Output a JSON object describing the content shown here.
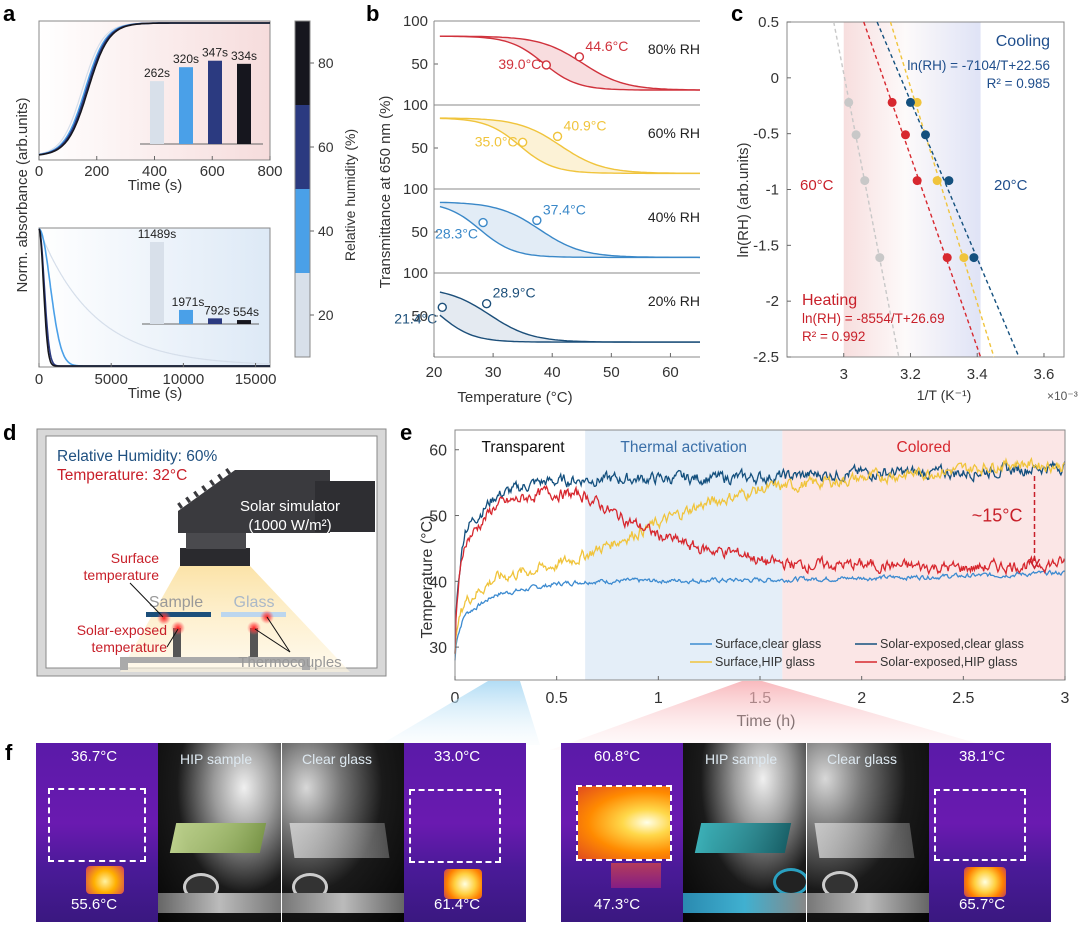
{
  "panel_labels": {
    "a": "a",
    "b": "b",
    "c": "c",
    "d": "d",
    "e": "e",
    "f": "f"
  },
  "chart_data": [
    {
      "id": "a_top",
      "type": "line",
      "title": "",
      "xlabel": "Time (s)",
      "ylabel": "Norm. absorbance (arb.units)",
      "xlim": [
        0,
        800
      ],
      "xticks": [
        "0",
        "200",
        "400",
        "600",
        "800"
      ],
      "series": [
        {
          "name": "20% RH",
          "color": "#d5deea",
          "t_half": 150
        },
        {
          "name": "40% RH",
          "color": "#4aa0e8",
          "t_half": 160
        },
        {
          "name": "60% RH",
          "color": "#2b3a80",
          "t_half": 165
        },
        {
          "name": "80% RH",
          "color": "#16161e",
          "t_half": 170
        }
      ],
      "inset": {
        "type": "bar",
        "categories": [
          "20% RH",
          "40% RH",
          "60% RH",
          "80% RH"
        ],
        "values": [
          262,
          320,
          347,
          334
        ],
        "labels": [
          "262s",
          "320s",
          "347s",
          "334s"
        ],
        "colors": [
          "#d8e0ea",
          "#4aa0e8",
          "#2b3a80",
          "#16161e"
        ]
      }
    },
    {
      "id": "a_bottom",
      "type": "line",
      "xlabel": "Time (s)",
      "xlim": [
        0,
        16000
      ],
      "xticks": [
        "0",
        "5000",
        "10000",
        "15000"
      ],
      "series": [
        {
          "name": "20% RH",
          "color": "#d5deea",
          "tau": 3800
        },
        {
          "name": "40% RH",
          "color": "#4aa0e8",
          "tau": 900
        },
        {
          "name": "60% RH",
          "color": "#2b3a80",
          "tau": 420
        },
        {
          "name": "80% RH",
          "color": "#16161e",
          "tau": 360
        }
      ],
      "inset": {
        "type": "bar",
        "categories": [
          "20% RH",
          "40% RH",
          "60% RH",
          "80% RH"
        ],
        "values": [
          11489,
          1971,
          792,
          554
        ],
        "labels": [
          "11489s",
          "1971s",
          "792s",
          "554s"
        ],
        "colors": [
          "#d8e0ea",
          "#4aa0e8",
          "#2b3a80",
          "#16161e"
        ]
      }
    },
    {
      "id": "colorbar",
      "type": "heatmap",
      "label": "Relative humidity (%)",
      "range": [
        10,
        90
      ],
      "ticks": [
        "20",
        "40",
        "60",
        "80"
      ],
      "bands": [
        {
          "from": 10,
          "to": 30,
          "color": "#d8e0ea"
        },
        {
          "from": 30,
          "to": 50,
          "color": "#4aa0e8"
        },
        {
          "from": 50,
          "to": 70,
          "color": "#2b3a80"
        },
        {
          "from": 70,
          "to": 90,
          "color": "#16161e"
        }
      ]
    },
    {
      "id": "b",
      "type": "line",
      "xlabel": "Temperature (°C)",
      "ylabel": "Transmittance at 650 nm (%)",
      "xlim": [
        20,
        65
      ],
      "xticks": [
        "20",
        "30",
        "40",
        "50",
        "60"
      ],
      "yticks": [
        "100",
        "50"
      ],
      "subplots": [
        {
          "rh": "80% RH",
          "color": "#d0323c",
          "fill": "#f7d7d9",
          "top": 85,
          "bottom": 12,
          "heat": 44.6,
          "cool": 39.0,
          "heat_label": "44.6°C",
          "cool_label": "39.0°C",
          "heat_y": 57,
          "cool_y": 46
        },
        {
          "rh": "60% RH",
          "color": "#f0c43c",
          "fill": "#fbf0cf",
          "top": 88,
          "bottom": 13,
          "heat": 40.9,
          "cool": 35.0,
          "heat_label": "40.9°C",
          "cool_label": "35.0°C",
          "heat_y": 63,
          "cool_y": 55
        },
        {
          "rh": "40% RH",
          "color": "#3a88c8",
          "fill": "#dde9f5",
          "top": 88,
          "bottom": 13,
          "heat": 37.4,
          "cool": 28.3,
          "heat_label": "37.4°C",
          "cool_label": "28.3°C",
          "heat_y": 63,
          "cool_y": 60
        },
        {
          "rh": "20% RH",
          "color": "#1c4f7a",
          "fill": "#dfe6ee",
          "top": 86,
          "bottom": 12,
          "heat": 28.9,
          "cool": 21.4,
          "heat_label": "28.9°C",
          "cool_label": "21.4°C",
          "heat_y": 64,
          "cool_y": 59
        }
      ]
    },
    {
      "id": "c",
      "type": "scatter",
      "xlabel": "1/T (K⁻¹)",
      "x_multiplier": "×10⁻³",
      "ylabel": "ln(RH) (arb.units)",
      "xlim": [
        2.83,
        3.66
      ],
      "ylim": [
        -2.5,
        0.5
      ],
      "xticks": [
        "3",
        "3.2",
        "3.4",
        "3.6"
      ],
      "yticks": [
        "0.5",
        "0",
        "-0.5",
        "-1",
        "-1.5",
        "-2",
        "-2.5"
      ],
      "series": [
        {
          "name": "gray",
          "color": "#c8c8c8",
          "points": [
            [
              3.015,
              -0.22
            ],
            [
              3.037,
              -0.51
            ],
            [
              3.063,
              -0.92
            ],
            [
              3.108,
              -1.61
            ]
          ],
          "fit": [
            [
              2.97,
              0.5
            ],
            [
              3.165,
              -2.5
            ]
          ]
        },
        {
          "name": "red",
          "color": "#d7282f",
          "points": [
            [
              3.145,
              -0.22
            ],
            [
              3.185,
              -0.51
            ],
            [
              3.22,
              -0.92
            ],
            [
              3.31,
              -1.61
            ]
          ],
          "fit": [
            [
              3.06,
              0.5
            ],
            [
              3.41,
              -2.5
            ]
          ]
        },
        {
          "name": "yellow",
          "color": "#f0c43c",
          "points": [
            [
              3.22,
              -0.22
            ],
            [
              3.28,
              -0.92
            ],
            [
              3.36,
              -1.61
            ]
          ],
          "fit": [
            [
              3.14,
              0.5
            ],
            [
              3.45,
              -2.5
            ]
          ]
        },
        {
          "name": "navy",
          "color": "#14507e",
          "points": [
            [
              3.2,
              -0.22
            ],
            [
              3.245,
              -0.51
            ],
            [
              3.315,
              -0.92
            ],
            [
              3.39,
              -1.61
            ]
          ],
          "fit": [
            [
              3.1,
              0.5
            ],
            [
              3.525,
              -2.5
            ]
          ]
        }
      ],
      "annotations": {
        "cooling_title": "Cooling",
        "cooling_eq": "ln(RH) = -7104/T+22.56",
        "cooling_r2": "R² = 0.985",
        "heating_title": "Heating",
        "heating_eq": "ln(RH) = -8554/T+26.69",
        "heating_r2": "R² = 0.992",
        "hot": "60°C",
        "cold": "20°C"
      },
      "band": {
        "from": 3.0,
        "to": 3.41
      }
    },
    {
      "id": "e",
      "type": "line",
      "xlabel": "Time (h)",
      "ylabel": "Temperature (°C)",
      "xlim": [
        0,
        3
      ],
      "ylim": [
        25,
        63
      ],
      "xticks": [
        "0",
        "0.5",
        "1",
        "1.5",
        "2",
        "2.5",
        "3"
      ],
      "yticks": [
        "30",
        "40",
        "50",
        "60"
      ],
      "regions": [
        {
          "label": "Transparent",
          "from": 0,
          "to": 0.64,
          "color": "#ffffff",
          "text_color": "#111111"
        },
        {
          "label": "Thermal activation",
          "from": 0.64,
          "to": 1.61,
          "color": "#e4eef8",
          "text_color": "#3a6fa8"
        },
        {
          "label": "Colored",
          "from": 1.61,
          "to": 3,
          "color": "#fbe6e6",
          "text_color": "#d7282f"
        }
      ],
      "series": [
        {
          "name": "Surface,clear glass",
          "color": "#3d8bd0",
          "keypoints": [
            [
              0,
              28
            ],
            [
              0.05,
              35
            ],
            [
              0.2,
              38
            ],
            [
              0.5,
              39.6
            ],
            [
              0.64,
              40
            ],
            [
              1.5,
              40.2
            ],
            [
              2.0,
              40.5
            ],
            [
              2.5,
              40.8
            ],
            [
              3,
              41.3
            ]
          ]
        },
        {
          "name": "Solar-exposed,clear glass",
          "color": "#14507e",
          "keypoints": [
            [
              0,
              29
            ],
            [
              0.05,
              48
            ],
            [
              0.2,
              53
            ],
            [
              0.4,
              55
            ],
            [
              0.64,
              55.5
            ],
            [
              1.5,
              55.8
            ],
            [
              2.0,
              56.5
            ],
            [
              2.5,
              56.5
            ],
            [
              3,
              57.5
            ]
          ]
        },
        {
          "name": "Surface,HIP glass",
          "color": "#f0c43c",
          "keypoints": [
            [
              0,
              29
            ],
            [
              0.05,
              37
            ],
            [
              0.2,
              40.5
            ],
            [
              0.5,
              42.5
            ],
            [
              0.64,
              44
            ],
            [
              0.9,
              47.5
            ],
            [
              1.2,
              51.5
            ],
            [
              1.5,
              54
            ],
            [
              1.8,
              55
            ],
            [
              2.1,
              56
            ],
            [
              2.5,
              57
            ],
            [
              2.75,
              58
            ],
            [
              3,
              57.5
            ]
          ]
        },
        {
          "name": "Solar-exposed,HIP glass",
          "color": "#d7282f",
          "keypoints": [
            [
              0,
              29
            ],
            [
              0.05,
              46
            ],
            [
              0.2,
              51.5
            ],
            [
              0.45,
              53.5
            ],
            [
              0.64,
              53
            ],
            [
              0.8,
              50
            ],
            [
              1.0,
              47
            ],
            [
              1.2,
              45
            ],
            [
              1.45,
              44
            ],
            [
              1.5,
              43
            ],
            [
              1.7,
              42.5
            ],
            [
              2.0,
              42.5
            ],
            [
              2.5,
              42
            ],
            [
              3,
              42.8
            ]
          ]
        }
      ],
      "annotation": {
        "label": "~15°C",
        "x": 2.85,
        "y_from": 56,
        "y_to": 42
      }
    }
  ],
  "panel_d": {
    "rh_line": "Relative Humidity: 60%",
    "temp_line": "Temperature: 32°C",
    "simulator_line1": "Solar simulator",
    "simulator_line2": "(1000 W/m²)",
    "surface_temp_1": "Surface",
    "surface_temp_2": "temperature",
    "solar_temp_1": "Solar-exposed",
    "solar_temp_2": "temperature",
    "sample": "Sample",
    "glass": "Glass",
    "thermocouples": "Thermocouples"
  },
  "panel_f": {
    "left": {
      "ir_left_top": "36.7°C",
      "ir_left_bottom": "55.6°C",
      "photo_left": "HIP sample",
      "photo_right": "Clear glass",
      "ir_right_top": "33.0°C",
      "ir_right_bottom": "61.4°C"
    },
    "right": {
      "ir_left_top": "60.8°C",
      "ir_left_bottom": "47.3°C",
      "photo_left": "HIP sample",
      "photo_right": "Clear glass",
      "ir_right_top": "38.1°C",
      "ir_right_bottom": "65.7°C"
    }
  }
}
